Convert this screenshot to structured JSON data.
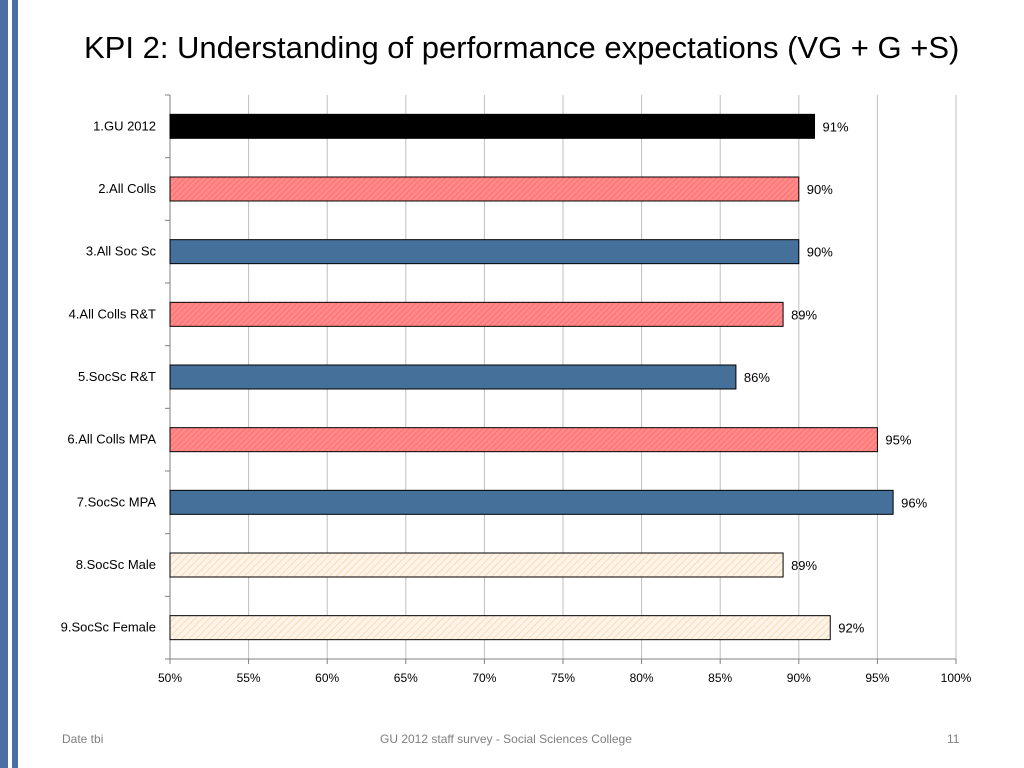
{
  "slide": {
    "title": "KPI 2: Understanding of performance expectations (VG + G +S)",
    "footer_left": "Date tbi",
    "footer_center": "GU 2012 staff survey -  Social Sciences College",
    "page_number": "11"
  },
  "colors": {
    "accent_bar": "#4a6fa5",
    "black_bar": "#000000",
    "pink_bar": "#ff8080",
    "blue_bar": "#44709a",
    "cream_bar": "#fde9d2",
    "grid": "#bfbfbf"
  },
  "chart_data": {
    "type": "bar",
    "orientation": "horizontal",
    "categories": [
      "1.GU 2012",
      "2.All Colls",
      "3.All Soc Sc",
      "4.All Colls R&T",
      "5.SocSc R&T",
      "6.All Colls MPA",
      "7.SocSc MPA",
      "8.SocSc Male",
      "9.SocSc Female"
    ],
    "values": [
      91,
      90,
      90,
      89,
      86,
      95,
      96,
      89,
      92
    ],
    "data_labels": [
      "91%",
      "90%",
      "90%",
      "89%",
      "86%",
      "95%",
      "96%",
      "89%",
      "92%"
    ],
    "bar_styles": [
      "black",
      "pink",
      "blue",
      "pink",
      "blue",
      "pink",
      "blue",
      "cream",
      "cream"
    ],
    "xlim": [
      50,
      100
    ],
    "xticks": [
      50,
      55,
      60,
      65,
      70,
      75,
      80,
      85,
      90,
      95,
      100
    ],
    "xtick_labels": [
      "50%",
      "55%",
      "60%",
      "65%",
      "70%",
      "75%",
      "80%",
      "85%",
      "90%",
      "95%",
      "100%"
    ],
    "grid": true,
    "legend": "none"
  }
}
